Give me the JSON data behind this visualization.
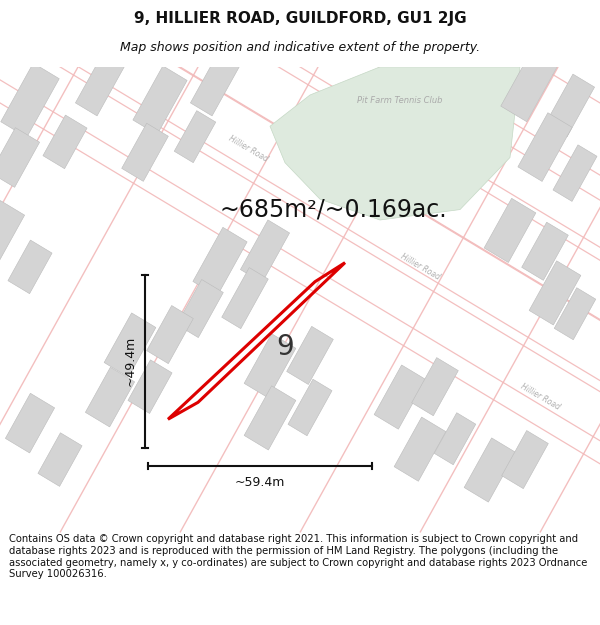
{
  "title": "9, HILLIER ROAD, GUILDFORD, GU1 2JG",
  "subtitle": "Map shows position and indicative extent of the property.",
  "area_text": "~685m²/~0.169ac.",
  "width_label": "~59.4m",
  "height_label": "~49.4m",
  "number_label": "9",
  "footer_text": "Contains OS data © Crown copyright and database right 2021. This information is subject to Crown copyright and database rights 2023 and is reproduced with the permission of HM Land Registry. The polygons (including the associated geometry, namely x, y co-ordinates) are subject to Crown copyright and database rights 2023 Ordnance Survey 100026316.",
  "bg_color": "#ffffff",
  "map_bg": "#ffffff",
  "road_color": "#f2b8b8",
  "building_color": "#d4d4d4",
  "green_area_color": "#deeade",
  "highlight_color": "#dd0000",
  "road_label_color": "#b0b0b0",
  "title_fontsize": 11,
  "subtitle_fontsize": 9,
  "footer_fontsize": 7.2,
  "road_lw": 0.8,
  "road_alpha": 0.9
}
